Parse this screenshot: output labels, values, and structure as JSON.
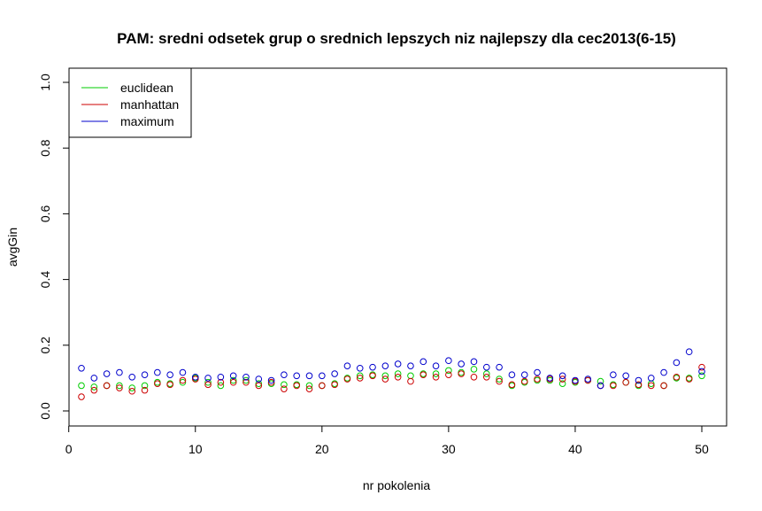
{
  "chart_data": {
    "type": "scatter",
    "title": "PAM: sredni odsetek grup o srednich lepszych niz najlepszy dla cec2013(6-15)",
    "xlabel": "nr pokolenia",
    "ylabel": "avgGin",
    "xlim": [
      1,
      50
    ],
    "ylim": [
      0.0,
      1.0
    ],
    "x_ticks": [
      "0",
      "10",
      "20",
      "30",
      "40",
      "50"
    ],
    "y_ticks": [
      "0.0",
      "0.2",
      "0.4",
      "0.6",
      "0.8",
      "1.0"
    ],
    "legend_position": "top-left",
    "grid": false,
    "x": [
      1,
      2,
      3,
      4,
      5,
      6,
      7,
      8,
      9,
      10,
      11,
      12,
      13,
      14,
      15,
      16,
      17,
      18,
      19,
      20,
      21,
      22,
      23,
      24,
      25,
      26,
      27,
      28,
      29,
      30,
      31,
      32,
      33,
      34,
      35,
      36,
      37,
      38,
      39,
      40,
      41,
      42,
      43,
      44,
      45,
      46,
      47,
      48,
      49,
      50
    ],
    "series": [
      {
        "name": "euclidean",
        "color": "#00cc00",
        "values": [
          0.077,
          0.073,
          0.077,
          0.077,
          0.07,
          0.077,
          0.087,
          0.083,
          0.087,
          0.1,
          0.087,
          0.077,
          0.093,
          0.093,
          0.083,
          0.083,
          0.08,
          0.08,
          0.077,
          0.077,
          0.083,
          0.1,
          0.107,
          0.11,
          0.107,
          0.113,
          0.107,
          0.113,
          0.113,
          0.123,
          0.117,
          0.127,
          0.113,
          0.097,
          0.077,
          0.087,
          0.093,
          0.093,
          0.083,
          0.087,
          0.093,
          0.09,
          0.08,
          0.087,
          0.077,
          0.083,
          0.077,
          0.1,
          0.1,
          0.107
        ]
      },
      {
        "name": "manhattan",
        "color": "#cc0000",
        "values": [
          0.043,
          0.063,
          0.077,
          0.07,
          0.06,
          0.063,
          0.083,
          0.08,
          0.093,
          0.097,
          0.08,
          0.087,
          0.087,
          0.087,
          0.077,
          0.087,
          0.067,
          0.077,
          0.067,
          0.077,
          0.08,
          0.097,
          0.1,
          0.107,
          0.097,
          0.103,
          0.09,
          0.11,
          0.103,
          0.11,
          0.113,
          0.103,
          0.103,
          0.09,
          0.08,
          0.09,
          0.097,
          0.097,
          0.097,
          0.09,
          0.093,
          0.077,
          0.077,
          0.087,
          0.08,
          0.077,
          0.077,
          0.103,
          0.097,
          0.133
        ]
      },
      {
        "name": "maximum",
        "color": "#0000cc",
        "values": [
          0.13,
          0.1,
          0.113,
          0.117,
          0.103,
          0.11,
          0.117,
          0.11,
          0.117,
          0.103,
          0.1,
          0.103,
          0.107,
          0.103,
          0.097,
          0.093,
          0.11,
          0.107,
          0.107,
          0.107,
          0.113,
          0.137,
          0.13,
          0.133,
          0.137,
          0.143,
          0.137,
          0.15,
          0.137,
          0.153,
          0.143,
          0.15,
          0.133,
          0.133,
          0.11,
          0.11,
          0.117,
          0.1,
          0.107,
          0.093,
          0.097,
          0.077,
          0.11,
          0.107,
          0.093,
          0.1,
          0.117,
          0.147,
          0.18,
          0.12
        ]
      }
    ]
  }
}
